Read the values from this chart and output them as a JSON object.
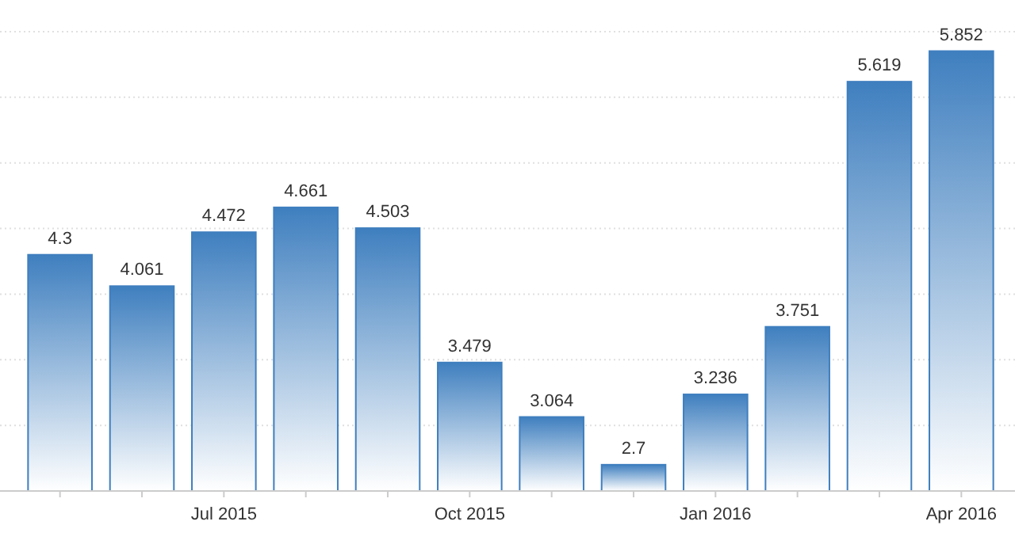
{
  "chart_data": {
    "type": "bar",
    "categories": [
      null,
      null,
      "Jul 2015",
      null,
      null,
      "Oct 2015",
      null,
      null,
      "Jan 2016",
      null,
      null,
      "Apr 2016"
    ],
    "values": [
      4.3,
      4.061,
      4.472,
      4.661,
      4.503,
      3.479,
      3.064,
      2.7,
      3.236,
      3.751,
      5.619,
      5.852
    ],
    "color": "#3f7fbf",
    "ylim": [
      2.5,
      6
    ],
    "yticks": [
      {
        "value": 2.5,
        "label": null
      },
      {
        "value": 3,
        "label": null
      },
      {
        "value": 3.5,
        "label": null
      },
      {
        "value": 4,
        "label": null
      },
      {
        "value": 4.5,
        "label": null
      },
      {
        "value": 5,
        "label": null
      },
      {
        "value": 5.5,
        "label": null
      },
      {
        "value": 6,
        "label": null
      }
    ],
    "grid": "y",
    "tick_labels": "x",
    "data_labels": true
  }
}
